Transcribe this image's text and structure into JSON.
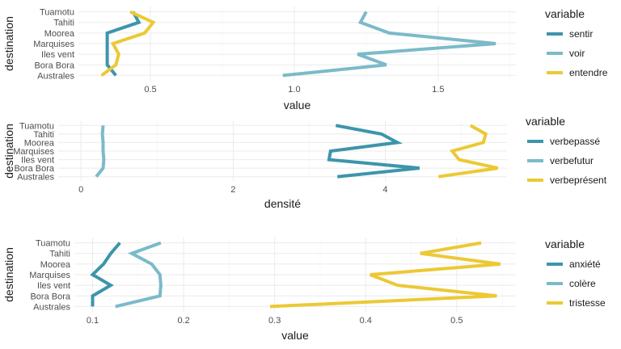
{
  "colors": {
    "teal_dark": "#3d95ab",
    "teal_light": "#7bbac9",
    "yellow": "#ecc934",
    "grid_major": "#ebebeb",
    "grid_minor": "#f5f5f5"
  },
  "chart_data": [
    {
      "type": "line",
      "orientation": "horizontal-path",
      "categories": [
        "Australes",
        "Bora Bora",
        "Iles vent",
        "Marquises",
        "Moorea",
        "Tahiti",
        "Tuamotu"
      ],
      "xlabel": "value",
      "ylabel": "destination",
      "xlim": [
        0.25,
        1.77
      ],
      "xticks": [
        0.5,
        1.0,
        1.5
      ],
      "xtick_labels": [
        "0.5",
        "1.0",
        "1.5"
      ],
      "legend_title": "variable",
      "legend_position": "right",
      "grid": true,
      "series": [
        {
          "name": "sentir",
          "color": "#3d95ab",
          "values": [
            0.38,
            0.35,
            0.35,
            0.35,
            0.35,
            0.46,
            0.44
          ]
        },
        {
          "name": "voir",
          "color": "#7bbac9",
          "values": [
            0.96,
            1.32,
            1.22,
            1.7,
            1.33,
            1.23,
            1.25
          ]
        },
        {
          "name": "entendre",
          "color": "#ecc934",
          "values": [
            0.33,
            0.38,
            0.39,
            0.37,
            0.48,
            0.51,
            0.43
          ]
        }
      ]
    },
    {
      "type": "line",
      "orientation": "horizontal-path",
      "categories": [
        "Australes",
        "Bora Bora",
        "Iles vent",
        "Marquises",
        "Moorea",
        "Tahiti",
        "Tuamotu"
      ],
      "xlabel": "densité",
      "ylabel": "destination",
      "xlim": [
        -0.3,
        5.6
      ],
      "xticks": [
        0,
        2,
        4
      ],
      "xtick_labels": [
        "0",
        "2",
        "4"
      ],
      "legend_title": "variable",
      "legend_position": "right",
      "grid": true,
      "series": [
        {
          "name": "verbepassé",
          "color": "#3d95ab",
          "values": [
            3.37,
            4.45,
            3.26,
            3.28,
            4.16,
            3.95,
            3.35
          ]
        },
        {
          "name": "verbefutur",
          "color": "#7bbac9",
          "values": [
            0.2,
            0.29,
            0.3,
            0.29,
            0.29,
            0.28,
            0.29
          ]
        },
        {
          "name": "verbeprésent",
          "color": "#ecc934",
          "values": [
            4.7,
            5.48,
            4.97,
            4.88,
            5.29,
            5.32,
            5.12
          ]
        }
      ]
    },
    {
      "type": "line",
      "orientation": "horizontal-path",
      "categories": [
        "Australes",
        "Bora Bora",
        "Iles vent",
        "Marquises",
        "Moorea",
        "Tahiti",
        "Tuamotu"
      ],
      "xlabel": "value",
      "ylabel": "destination",
      "xlim": [
        0.08,
        0.565
      ],
      "xticks": [
        0.1,
        0.2,
        0.3,
        0.4,
        0.5
      ],
      "xtick_labels": [
        "0.1",
        "0.2",
        "0.3",
        "0.4",
        "0.5"
      ],
      "legend_title": "variable",
      "legend_position": "right",
      "grid": true,
      "series": [
        {
          "name": "anxiété",
          "color": "#3d95ab",
          "values": [
            0.1,
            0.1,
            0.12,
            0.1,
            0.112,
            0.12,
            0.13
          ]
        },
        {
          "name": "colère",
          "color": "#7bbac9",
          "values": [
            0.125,
            0.174,
            0.175,
            0.174,
            0.165,
            0.143,
            0.175
          ]
        },
        {
          "name": "tristesse",
          "color": "#ecc934",
          "values": [
            0.295,
            0.544,
            0.435,
            0.405,
            0.548,
            0.46,
            0.527
          ]
        }
      ]
    }
  ]
}
